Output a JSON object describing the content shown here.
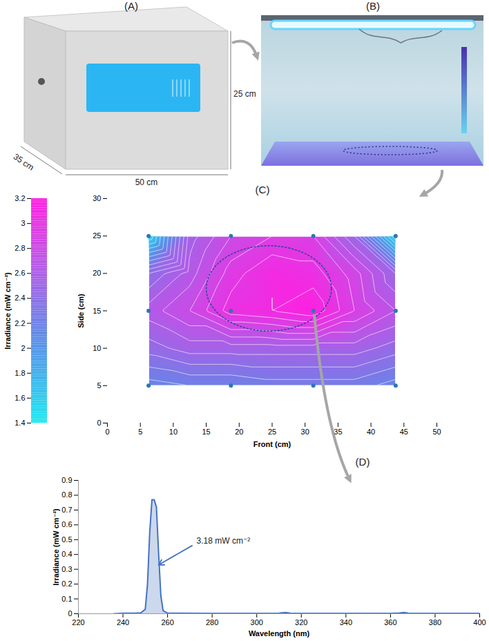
{
  "panel_labels": [
    "(A)",
    "(B)"
  ],
  "box_dimensions": [
    "25 cm",
    "35 cm",
    "50 cm"
  ],
  "chart_data": [
    {
      "type": "contour",
      "title": "(C)",
      "x_label": "Front (cm)",
      "y_label": "Side (cm)",
      "xlim": [
        0,
        50
      ],
      "xticks": [
        0,
        5,
        10,
        15,
        20,
        25,
        30,
        35,
        40,
        45,
        50
      ],
      "ylim": [
        0,
        30
      ],
      "yticks": [
        0,
        5,
        10,
        15,
        20,
        25,
        30
      ],
      "grid_x": [
        6.25,
        12.5,
        18.75,
        25,
        31.25,
        37.5,
        43.75
      ],
      "grid_y": [
        5,
        10,
        15,
        20,
        25
      ],
      "cells": [
        [
          2.15,
          2.2,
          2.2,
          2.25,
          2.25,
          2.25,
          2.15
        ],
        [
          2.45,
          2.55,
          2.55,
          2.55,
          2.55,
          2.55,
          2.45
        ],
        [
          2.65,
          2.8,
          3.05,
          3.1,
          3.18,
          2.9,
          2.7
        ],
        [
          2.4,
          2.65,
          2.95,
          3.1,
          3.05,
          2.85,
          2.5
        ],
        [
          1.5,
          2.55,
          2.8,
          2.9,
          2.9,
          2.5,
          1.5
        ]
      ],
      "contour_levels": [
        1.6,
        1.7,
        1.8,
        1.9,
        2,
        2.1,
        2.2,
        2.3,
        2.4,
        2.5,
        2.6,
        2.7,
        2.8,
        2.9,
        3,
        3.1
      ],
      "measurement_points": {
        "x": [
          6.25,
          18.75,
          31.25,
          43.75,
          6.25,
          18.75,
          31.25,
          43.75,
          6.25,
          18.75,
          31.25,
          43.75
        ],
        "y": [
          25,
          25,
          25,
          25,
          15,
          15,
          15,
          15,
          5,
          5,
          5,
          5
        ]
      },
      "color": "#2e75b6",
      "colorbar": {
        "label": "Irradiance (mW cm⁻²)",
        "range": [
          1.4,
          3.2
        ],
        "ticks": [
          1.4,
          1.6,
          1.8,
          2,
          2.2,
          2.4,
          2.6,
          2.8,
          3,
          3.2
        ]
      }
    },
    {
      "type": "line",
      "title": "(D)",
      "x_label": "Wavelength (nm)",
      "y_label": "Irradiance (mW cm⁻²)",
      "xlim": [
        220,
        400
      ],
      "xticks": [
        220,
        240,
        260,
        280,
        300,
        320,
        340,
        360,
        380,
        400
      ],
      "ylim": [
        0,
        0.9
      ],
      "yticks": [
        0,
        0.1,
        0.2,
        0.3,
        0.4,
        0.5,
        0.6,
        0.7,
        0.8,
        0.9
      ],
      "x": [
        236,
        240,
        245,
        248,
        250,
        251,
        252,
        253,
        254,
        255,
        256,
        257,
        258,
        260,
        265,
        280,
        300,
        310,
        312,
        313,
        315,
        320,
        340,
        360,
        364,
        366,
        368,
        372,
        400
      ],
      "values": [
        0,
        0.003,
        0.004,
        0.006,
        0.03,
        0.2,
        0.55,
        0.77,
        0.77,
        0.72,
        0.4,
        0.12,
        0.02,
        0.004,
        0.003,
        0.002,
        0.002,
        0.003,
        0.007,
        0.008,
        0.004,
        0.002,
        0.002,
        0.002,
        0.005,
        0.008,
        0.004,
        0.002,
        0.002
      ],
      "color": "#4472c4",
      "annotations": [
        {
          "text": "3.18 mW cm⁻²"
        }
      ]
    }
  ]
}
